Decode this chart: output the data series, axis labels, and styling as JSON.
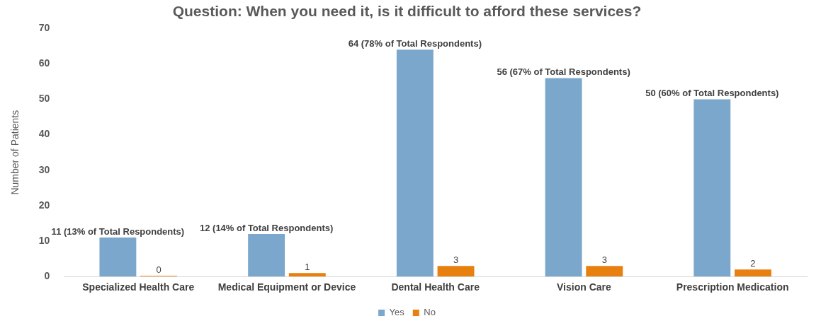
{
  "chart_data": {
    "type": "bar",
    "title": "Question: When you need it, is it difficult to afford these services?",
    "ylabel": "Number of Patients",
    "categories": [
      "Specialized Health Care",
      "Medical Equipment or Device",
      "Dental Health Care",
      "Vision Care",
      "Prescription Medication"
    ],
    "series": [
      {
        "name": "Yes",
        "color": "#7ba7cc",
        "values": [
          11,
          12,
          64,
          56,
          50
        ],
        "value_labels": [
          "11 (13% of Total Respondents)",
          "12 (14% of Total Respondents)",
          "64 (78% of Total Respondents)",
          "56 (67% of Total Respondents)",
          "50 (60% of Total Respondents)"
        ]
      },
      {
        "name": "No",
        "color": "#e8800f",
        "values": [
          0,
          1,
          3,
          3,
          2
        ],
        "value_labels": [
          "0",
          "1",
          "3",
          "3",
          "2"
        ]
      }
    ],
    "ylim": [
      0,
      70
    ],
    "yticks": [
      0,
      10,
      20,
      30,
      40,
      50,
      60,
      70
    ],
    "grid": false,
    "legend": "bottom"
  }
}
